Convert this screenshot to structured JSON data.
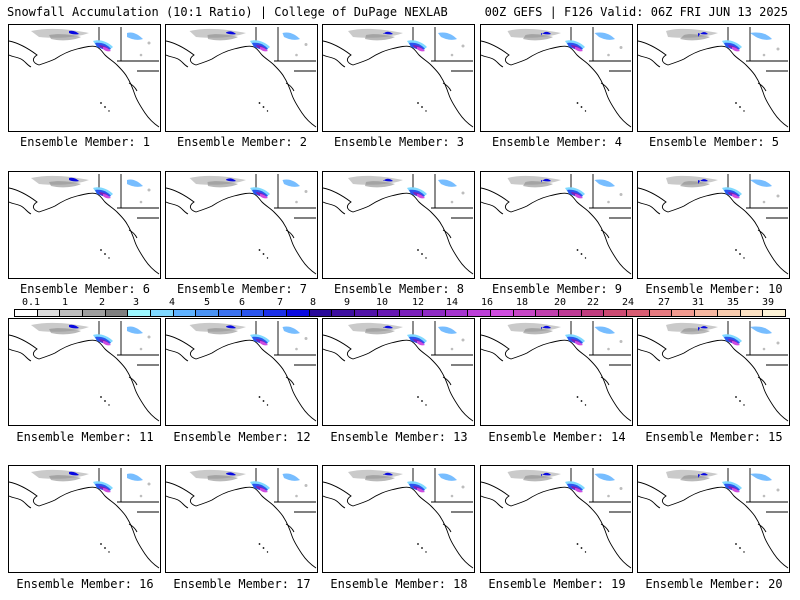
{
  "header": {
    "title_left": "Snowfall Accumulation (10:1 Ratio) | College of DuPage NEXLAB",
    "title_right": "00Z GEFS | F126 Valid: 06Z FRI JUN 13 2025"
  },
  "colorbar": {
    "colors": [
      "#ffffff",
      "#dcdcdc",
      "#bdbdbd",
      "#9e9e9e",
      "#7f7f7f",
      "#9cf7ff",
      "#7fd8ff",
      "#5fb2ff",
      "#4a93f5",
      "#3b72f0",
      "#2a55ee",
      "#1a2fe8",
      "#0a0ae0",
      "#2a0a9a",
      "#3e0fa0",
      "#5113a8",
      "#6718b2",
      "#7b20bc",
      "#8e2ac4",
      "#a534cf",
      "#bc3fd8",
      "#cf4cdf",
      "#c746c6",
      "#c13fae",
      "#bf3a96",
      "#c13d7f",
      "#cc4a72",
      "#d85d73",
      "#e67a80",
      "#f19a8f",
      "#f6b7a0",
      "#f9ccaf",
      "#fbe0c2",
      "#fdf2d6"
    ],
    "tick_labels": [
      "0.1",
      "1",
      "2",
      "3",
      "4",
      "5",
      "6",
      "7",
      "8",
      "9",
      "10",
      "12",
      "14",
      "16",
      "18",
      "20",
      "22",
      "24",
      "27",
      "31",
      "35",
      "39"
    ]
  },
  "panels": [
    {
      "label": "Ensemble Member: 1"
    },
    {
      "label": "Ensemble Member: 2"
    },
    {
      "label": "Ensemble Member: 3"
    },
    {
      "label": "Ensemble Member: 4"
    },
    {
      "label": "Ensemble Member: 5"
    },
    {
      "label": "Ensemble Member: 6"
    },
    {
      "label": "Ensemble Member: 7"
    },
    {
      "label": "Ensemble Member: 8"
    },
    {
      "label": "Ensemble Member: 9"
    },
    {
      "label": "Ensemble Member: 10"
    },
    {
      "label": "Ensemble Member: 11"
    },
    {
      "label": "Ensemble Member: 12"
    },
    {
      "label": "Ensemble Member: 13"
    },
    {
      "label": "Ensemble Member: 14"
    },
    {
      "label": "Ensemble Member: 15"
    },
    {
      "label": "Ensemble Member: 16"
    },
    {
      "label": "Ensemble Member: 17"
    },
    {
      "label": "Ensemble Member: 18"
    },
    {
      "label": "Ensemble Member: 19"
    },
    {
      "label": "Ensemble Member: 20"
    }
  ]
}
